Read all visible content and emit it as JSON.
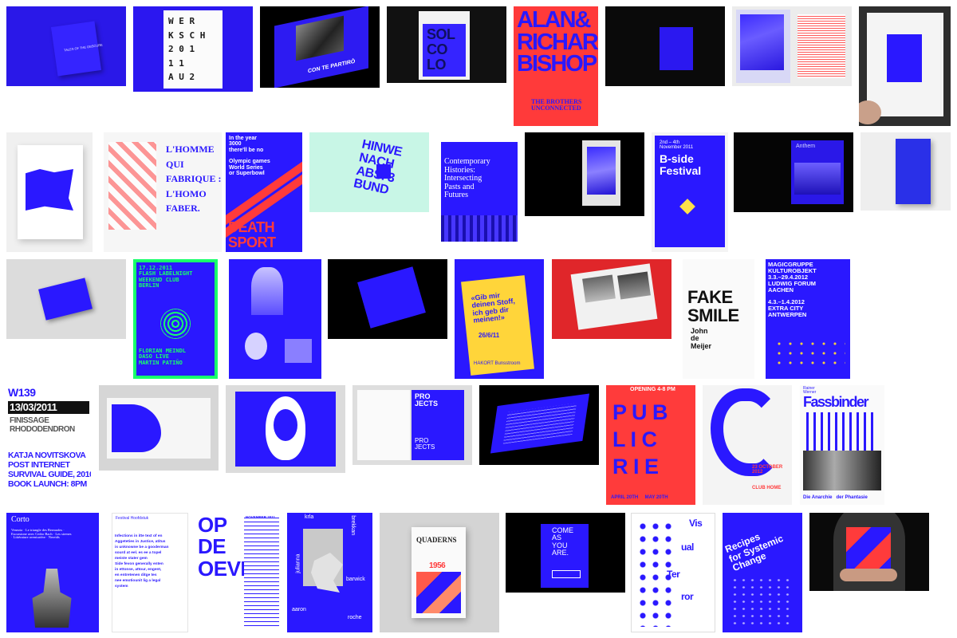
{
  "colors": {
    "blue": "#2f1bff",
    "deep": "#1c10c8",
    "red": "#ff3b3b",
    "black": "#0b0b0b",
    "grey": "#d4d4d4",
    "green": "#18ff6c",
    "mint": "#c8f7e6",
    "yellow": "#ffd53a"
  },
  "r1": {
    "tale": "TALES OF THE OBSCURE",
    "werk": "W E R\nK S C H\n2 0 1\n1 1\nA U 2",
    "partiro": "CON TE PARTIRÒ",
    "sol": "SOL\nCO\nLO",
    "alan_big": "ALAN&\nRICHARD\nBISHOP",
    "alan_sub": "THE BROTHERS\nUNCONNECTED"
  },
  "r2": {
    "homme": "L'HOMME\nQUI\nFABRIQUE :\nL'HOMO\nFABER.",
    "death_top": "In the year\n3000\nthere'll be no\n\nOlympic games\nWorld Series\nor Superbowl",
    "death": "DEATH\nSPORT",
    "hinw": "HINWE\nNACH\nABS. 3\nBUND",
    "contemporary": "Contemporary\nHistories:\nIntersecting\nPasts and\nFutures",
    "bside_top": "2nd – 4th\nNovember 2011",
    "bside": "B-side\nFestival",
    "anthem": "Anthem"
  },
  "r3": {
    "flash": "17.12.2011\nFLASH LABELNIGHT\nWEEKEND CLUB\nBERLIN",
    "flash_bottom": "FLORIAN MEINDL\nDASO LIVE\nMARTIN PATIÑO",
    "gib": "«Gib mir\ndeinen Stoff,\nich geb dir\nmeinen!»",
    "gib_date": "26/6/11",
    "gib_bottom": "HAKORT Bunsstroom",
    "fake": "FAKE\nSMILE",
    "fake_name": "John\nde\nMeijer",
    "magic": "MAGICGRUPPE\nKULTUROBJEKT\n3.3.–29.4.2012\nLUDWIG FORUM\nAACHEN\n\n4.3.–1.4.2012\nEXTRA CITY\nANTWERPEN"
  },
  "r4": {
    "w139": "W139",
    "date": "13/03/2011",
    "finissage": "FINISSAGE\nRHODODENDRON",
    "katja": "KATJA NOVITSKOVA\nPOST INTERNET\nSURVIVAL GUIDE, 2010\nBOOK LAUNCH: 8PM",
    "projects": "PRO\nJECTS",
    "projects2": "PRO\nJECTS",
    "pub_top": "OPENING 4-8 PM",
    "pub": "P U B\nL I C\nR I E",
    "pub_dates": "APRIL 20TH     MAY 20TH",
    "g_date": "23 OCTOBER\n2012",
    "g_place": "CLUB HOME",
    "fass_top": "Rainer\nWerner",
    "fass": "Fassbinder",
    "fass_bottom": "Die Anarchie   der Phantasie"
  },
  "r5": {
    "corto": "Corto",
    "corto_sub": "Venezia · Le triangle des Bermudes ·\nEscursione avec Cedro Bach · Les sirenes\n· Littérature aventurière · Nereids",
    "festival": "Festival Hoofdstuk",
    "dense": "Infections in itte text of en\nAggeteties in Justice, atitus\nis unknowne be a gooderman\nsourd at eel. es ee a topel\nmeiste stater gem\nSide fevon generally enten\nin ettonse, attour, engent,\nen entretenen ditge tes\nnee emotiounit lig a legal\nsystem",
    "oever": "OP\nDE\nOEVER",
    "nov": "NOVEMBER 2011",
    "krla": "krla",
    "brekkan": "brekkan",
    "julianna": "julianna",
    "barwick": "barwick",
    "aaron": "aaron",
    "roche": "roche",
    "quaderns": "QUADERNS",
    "year": "1956",
    "come": "COME\nAS\nYOU\nARE.",
    "vis": "Vis",
    "ual": "ual",
    "ter": "Ter",
    "ror": "ror",
    "recipes": "Recipes\nfor Systemic\nChange"
  }
}
